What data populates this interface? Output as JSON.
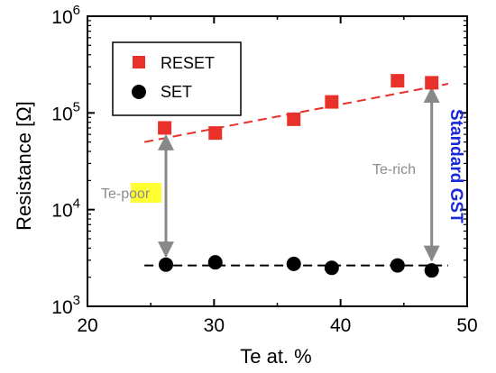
{
  "chart_data": {
    "type": "scatter",
    "xlabel": "Te at. %",
    "ylabel_prefix": "Resistance [",
    "ylabel_unit": "Ω",
    "ylabel_suffix": "]",
    "xlim": [
      20,
      50
    ],
    "ylim": [
      1000,
      1000000
    ],
    "yscale": "log",
    "x_ticks": [
      {
        "value": 20,
        "label": "20"
      },
      {
        "value": 30,
        "label": "30"
      },
      {
        "value": 40,
        "label": "40"
      },
      {
        "value": 50,
        "label": "50"
      }
    ],
    "y_ticks": [
      {
        "value": 1000,
        "base": "10",
        "exp": "3"
      },
      {
        "value": 10000,
        "base": "10",
        "exp": "4"
      },
      {
        "value": 100000,
        "base": "10",
        "exp": "5"
      },
      {
        "value": 1000000,
        "base": "10",
        "exp": "6"
      }
    ],
    "series": [
      {
        "name": "RESET",
        "marker": "square",
        "color": "#e8312a",
        "points": [
          [
            26.1,
            70000
          ],
          [
            30.1,
            62000
          ],
          [
            36.3,
            86000
          ],
          [
            39.3,
            130000
          ],
          [
            44.5,
            215000
          ],
          [
            47.2,
            205000
          ]
        ],
        "trend": {
          "x": [
            24.5,
            48.5
          ],
          "y": [
            50000,
            200000
          ]
        }
      },
      {
        "name": "SET",
        "marker": "circle",
        "color": "#000000",
        "points": [
          [
            26.2,
            2700
          ],
          [
            30.1,
            2850
          ],
          [
            36.3,
            2750
          ],
          [
            39.3,
            2500
          ],
          [
            44.5,
            2650
          ],
          [
            47.2,
            2350
          ]
        ],
        "trend": {
          "x": [
            24.5,
            48.5
          ],
          "y": [
            2650,
            2650
          ]
        }
      }
    ],
    "legend_position": "top-left",
    "arrows": [
      {
        "x": 26.2,
        "y_from": 58000,
        "y_to": 3300
      },
      {
        "x": 47.2,
        "y_from": 180000,
        "y_to": 3000
      }
    ],
    "annotations": {
      "te_poor_prefix": "Te-",
      "te_poor_highlight": "poor",
      "te_rich": "Te-rich",
      "standard_gst": "Standard GST"
    },
    "colors": {
      "arrow": "#888888",
      "highlight": "#ffff33",
      "annotation_text": "#8c8c8c",
      "gst_text": "#1a2ad6"
    }
  }
}
